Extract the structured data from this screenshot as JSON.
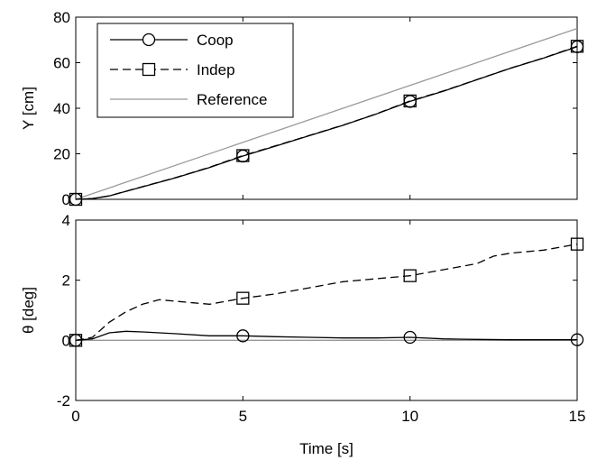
{
  "chart_data": [
    {
      "type": "line",
      "xlim": [
        0,
        15
      ],
      "ylim": [
        0,
        80
      ],
      "ylabel": "Y [cm]",
      "xticks": [
        0,
        5,
        10,
        15
      ],
      "yticks": [
        0,
        20,
        40,
        60,
        80
      ],
      "legend": {
        "placement": "top-left",
        "entries": [
          "Coop",
          "Indep",
          "Reference"
        ]
      },
      "series": [
        {
          "name": "Coop",
          "style": "solid-circle",
          "color": "#000000",
          "x": [
            0,
            0.5,
            1,
            2,
            3,
            4,
            5,
            6,
            7,
            8,
            9,
            10,
            11,
            12,
            13,
            14,
            15
          ],
          "y": [
            0,
            0.3,
            1.5,
            5.5,
            9.5,
            14,
            19,
            23.5,
            28,
            32.5,
            37.5,
            43,
            47.5,
            52.5,
            57.5,
            62,
            67
          ]
        },
        {
          "name": "Indep",
          "style": "dashed-square",
          "color": "#000000",
          "x": [
            0,
            0.5,
            1,
            2,
            3,
            4,
            5,
            6,
            7,
            8,
            9,
            10,
            11,
            12,
            13,
            14,
            15
          ],
          "y": [
            0,
            0.3,
            1.5,
            5.6,
            9.6,
            14.1,
            19.2,
            23.6,
            28.1,
            32.6,
            37.6,
            43.2,
            47.6,
            52.6,
            57.6,
            62.1,
            67.2
          ]
        },
        {
          "name": "Reference",
          "style": "solid",
          "color": "#999999",
          "x": [
            0,
            15
          ],
          "y": [
            0,
            75
          ]
        }
      ],
      "markers_at": [
        0,
        5,
        10,
        15
      ]
    },
    {
      "type": "line",
      "xlim": [
        0,
        15
      ],
      "ylim": [
        -2,
        4
      ],
      "xlabel": "Time [s]",
      "ylabel": "θ [deg]",
      "xticks": [
        0,
        5,
        10,
        15
      ],
      "yticks": [
        -2,
        0,
        2,
        4
      ],
      "series": [
        {
          "name": "Coop",
          "style": "solid-circle",
          "color": "#000000",
          "x": [
            0,
            0.5,
            1,
            1.5,
            2,
            3,
            4,
            5,
            6,
            7,
            8,
            9,
            10,
            11,
            12,
            13,
            14,
            15
          ],
          "y": [
            0,
            0.05,
            0.25,
            0.3,
            0.28,
            0.22,
            0.15,
            0.15,
            0.12,
            0.1,
            0.08,
            0.08,
            0.1,
            0.05,
            0.03,
            0.02,
            0.02,
            0.02
          ]
        },
        {
          "name": "Indep",
          "style": "dashed-square",
          "color": "#000000",
          "x": [
            0,
            0.5,
            1,
            1.5,
            2,
            2.5,
            3,
            3.5,
            4,
            4.5,
            5,
            6,
            7,
            8,
            9,
            10,
            11,
            12,
            12.5,
            13,
            14,
            15
          ],
          "y": [
            0,
            0.1,
            0.6,
            0.95,
            1.2,
            1.35,
            1.3,
            1.25,
            1.2,
            1.3,
            1.4,
            1.55,
            1.75,
            1.95,
            2.05,
            2.15,
            2.35,
            2.55,
            2.8,
            2.9,
            3.0,
            3.2
          ]
        },
        {
          "name": "Reference",
          "style": "solid",
          "color": "#999999",
          "x": [
            0,
            15
          ],
          "y": [
            0,
            0
          ]
        }
      ],
      "markers_at": [
        0,
        5,
        10,
        15
      ]
    }
  ]
}
